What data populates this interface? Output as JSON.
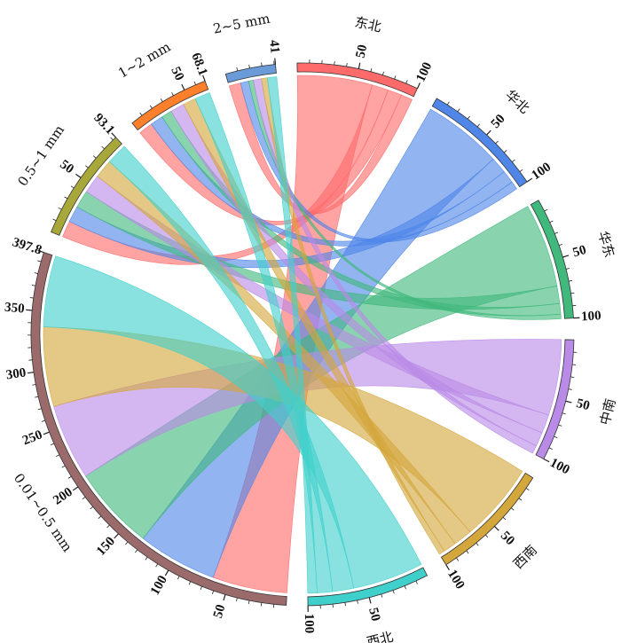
{
  "chart_data": {
    "type": "chord",
    "sectors": [
      {
        "name": "东北",
        "color": "#ff6b6b",
        "total": 100,
        "ticks": [
          50,
          100
        ]
      },
      {
        "name": "华北",
        "color": "#4f86e8",
        "total": 100,
        "ticks": [
          50,
          100
        ]
      },
      {
        "name": "华东",
        "color": "#41b87c",
        "total": 100,
        "ticks": [
          50,
          100
        ]
      },
      {
        "name": "中南",
        "color": "#b98ae6",
        "total": 100,
        "ticks": [
          50,
          100
        ]
      },
      {
        "name": "西南",
        "color": "#d4a73c",
        "total": 100,
        "ticks": [
          50,
          100
        ]
      },
      {
        "name": "西北",
        "color": "#40d0cc",
        "total": 100,
        "ticks": [
          50,
          100
        ]
      },
      {
        "name": "0.01~0.5 mm",
        "color": "#9b6b6b",
        "total": 397.8,
        "ticks": [
          50,
          100,
          150,
          200,
          250,
          300,
          350,
          397.8
        ]
      },
      {
        "name": "0.5~1 mm",
        "color": "#a8a83a",
        "total": 93.1,
        "ticks": [
          50,
          93.1
        ]
      },
      {
        "name": "1~2 mm",
        "color": "#ff7f2a",
        "total": 68.1,
        "ticks": [
          50,
          68.1
        ]
      },
      {
        "name": "2~5 mm",
        "color": "#6a9bd8",
        "total": 41,
        "ticks": [
          41
        ]
      }
    ],
    "flows": [
      {
        "from": "东北",
        "to": "0.01~0.5 mm",
        "value": 64
      },
      {
        "from": "东北",
        "to": "0.5~1 mm",
        "value": 14
      },
      {
        "from": "东北",
        "to": "1~2 mm",
        "value": 12
      },
      {
        "from": "东北",
        "to": "2~5 mm",
        "value": 10
      },
      {
        "from": "华北",
        "to": "0.01~0.5 mm",
        "value": 68
      },
      {
        "from": "华北",
        "to": "0.5~1 mm",
        "value": 14
      },
      {
        "from": "华北",
        "to": "1~2 mm",
        "value": 11
      },
      {
        "from": "华北",
        "to": "2~5 mm",
        "value": 7
      },
      {
        "from": "华东",
        "to": "0.01~0.5 mm",
        "value": 72
      },
      {
        "from": "华东",
        "to": "0.5~1 mm",
        "value": 15
      },
      {
        "from": "华东",
        "to": "1~2 mm",
        "value": 9
      },
      {
        "from": "华东",
        "to": "2~5 mm",
        "value": 4
      },
      {
        "from": "中南",
        "to": "0.01~0.5 mm",
        "value": 65
      },
      {
        "from": "中南",
        "to": "0.5~1 mm",
        "value": 16
      },
      {
        "from": "中南",
        "to": "1~2 mm",
        "value": 12
      },
      {
        "from": "中南",
        "to": "2~5 mm",
        "value": 7
      },
      {
        "from": "西南",
        "to": "0.01~0.5 mm",
        "value": 68
      },
      {
        "from": "西南",
        "to": "0.5~1 mm",
        "value": 16
      },
      {
        "from": "西南",
        "to": "1~2 mm",
        "value": 11
      },
      {
        "from": "西南",
        "to": "2~5 mm",
        "value": 5
      },
      {
        "from": "西北",
        "to": "0.01~0.5 mm",
        "value": 60.8
      },
      {
        "from": "西北",
        "to": "0.5~1 mm",
        "value": 18.1
      },
      {
        "from": "西北",
        "to": "1~2 mm",
        "value": 13.1
      },
      {
        "from": "西北",
        "to": "2~5 mm",
        "value": 8
      }
    ]
  }
}
